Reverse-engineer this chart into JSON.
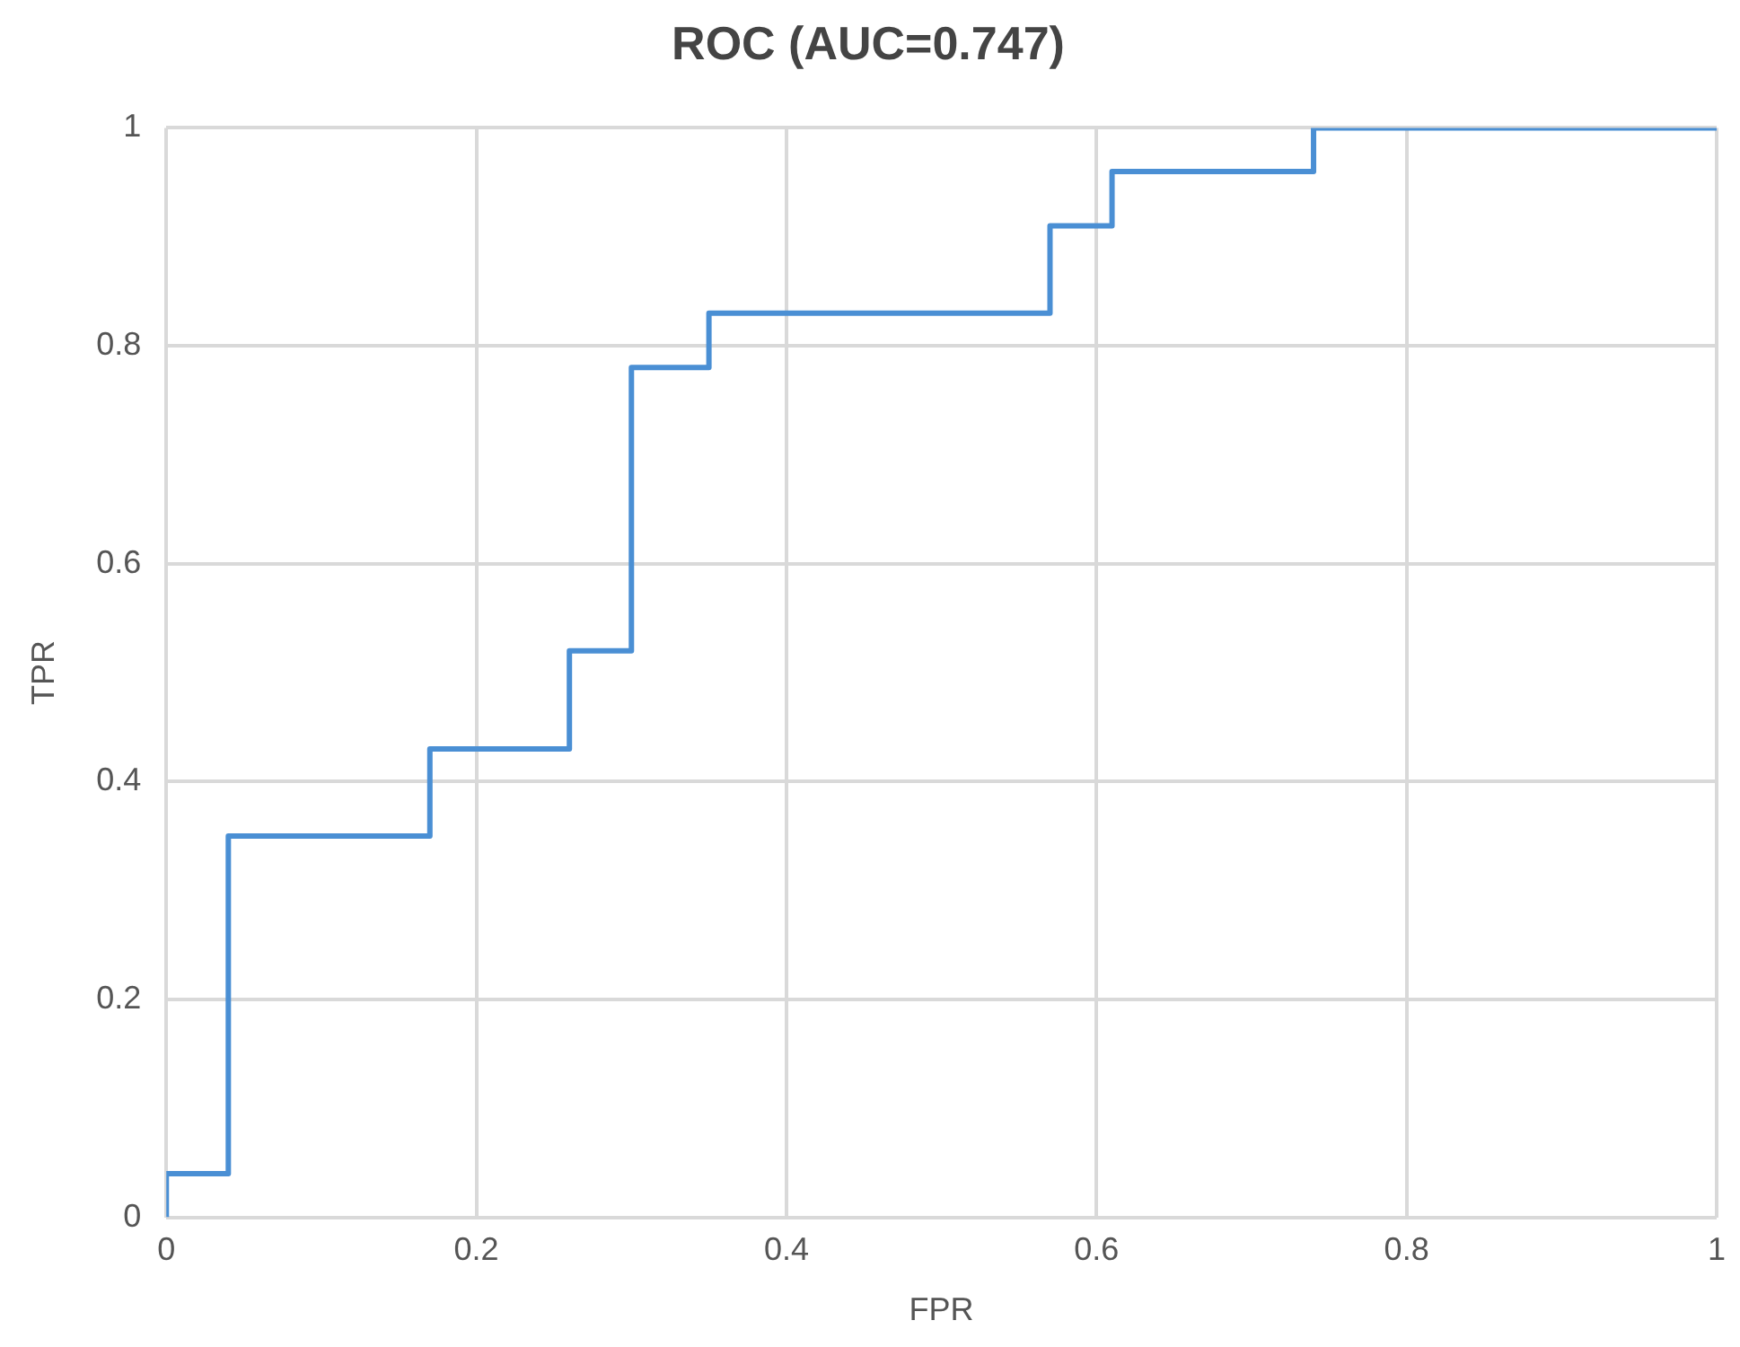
{
  "chart_data": {
    "type": "step",
    "title": "ROC (AUC=0.747)",
    "xlabel": "FPR",
    "ylabel": "TPR",
    "x": [
      0,
      0,
      0.04,
      0.17,
      0.26,
      0.3,
      0.35,
      0.57,
      0.61,
      0.74,
      1
    ],
    "series": [
      {
        "color": "#4a8fd4",
        "values": [
          0,
          0.04,
          0.35,
          0.43,
          0.52,
          0.78,
          0.83,
          0.91,
          0.96,
          1,
          1
        ]
      }
    ],
    "xlim": [
      0,
      1
    ],
    "xticks": [
      0,
      0.2,
      0.4,
      0.6,
      0.8,
      1
    ],
    "ylim": [
      0,
      1
    ],
    "yticks": [
      0,
      0.2,
      0.4,
      0.6,
      0.8,
      1
    ],
    "grid": true,
    "legend": false
  }
}
